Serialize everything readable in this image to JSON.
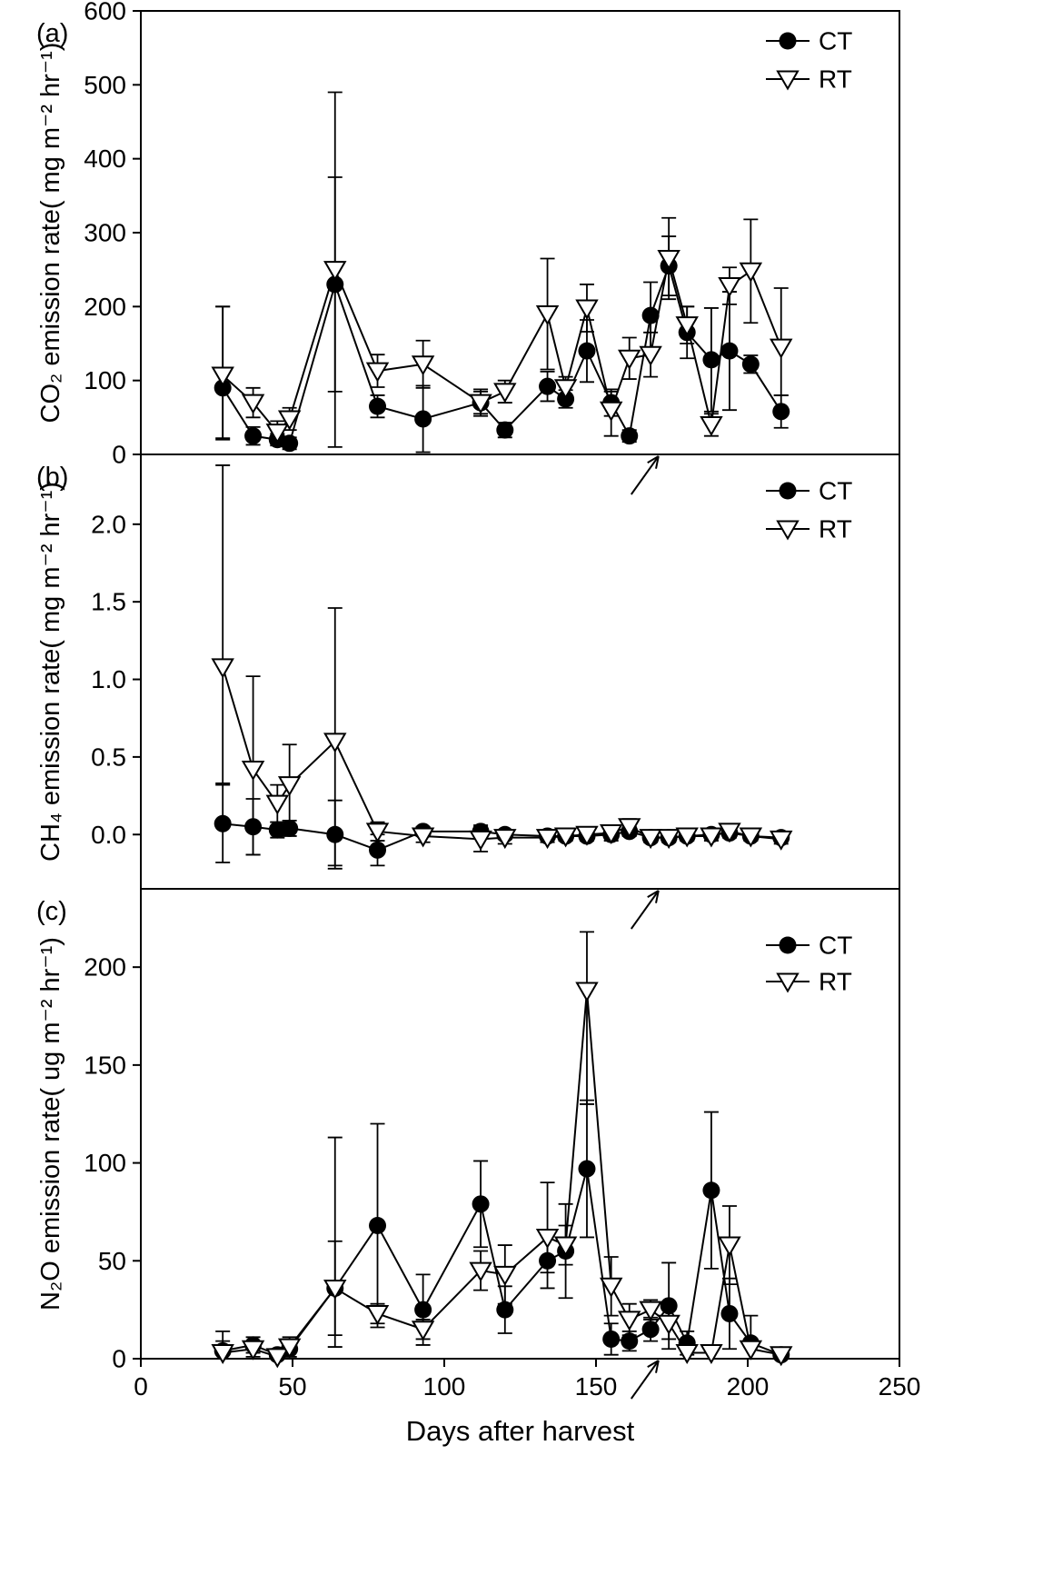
{
  "figure": {
    "xlabel": "Days after harvest",
    "xlim": [
      0,
      250
    ],
    "x_tick_values": [
      0,
      50,
      100,
      150,
      200,
      250
    ],
    "x_tick_labels": [
      "0",
      "50",
      "100",
      "150",
      "200",
      "250"
    ],
    "line_color": "#000000",
    "background": "#ffffff",
    "legend": [
      {
        "label": "CT",
        "marker": "filled-circle"
      },
      {
        "label": "RT",
        "marker": "open-triangle-down"
      }
    ]
  },
  "chart_data": [
    {
      "type": "line",
      "panel_label": "(a)",
      "ylabel": "CO₂ emission rate( mg m⁻² hr⁻¹)",
      "ylim": [
        0,
        600
      ],
      "y_tick_values": [
        0,
        100,
        200,
        300,
        400,
        500,
        600
      ],
      "y_tick_labels": [
        "0",
        "100",
        "200",
        "300",
        "400",
        "500",
        "600"
      ],
      "x": [
        27,
        37,
        45,
        49,
        64,
        78,
        93,
        112,
        120,
        134,
        140,
        147,
        155,
        161,
        168,
        174,
        180,
        188,
        194,
        201,
        211
      ],
      "series": [
        {
          "name": "CT",
          "marker": "filled-circle",
          "values": [
            90,
            25,
            20,
            15,
            230,
            65,
            48,
            70,
            33,
            92,
            75,
            140,
            70,
            25,
            188,
            255,
            165,
            128,
            140,
            122,
            58
          ],
          "err_up": [
            110,
            12,
            8,
            8,
            145,
            15,
            45,
            15,
            10,
            20,
            12,
            42,
            18,
            8,
            45,
            40,
            35,
            70,
            80,
            12,
            22
          ],
          "err_dn": [
            70,
            12,
            8,
            8,
            145,
            15,
            45,
            15,
            10,
            20,
            12,
            42,
            18,
            8,
            45,
            40,
            35,
            70,
            80,
            12,
            22
          ]
        },
        {
          "name": "RT",
          "marker": "open-triangle-down",
          "values": [
            107,
            70,
            30,
            48,
            250,
            113,
            122,
            70,
            85,
            190,
            90,
            198,
            60,
            130,
            135,
            265,
            175,
            40,
            228,
            248,
            145
          ],
          "err_up": [
            93,
            20,
            15,
            15,
            240,
            22,
            32,
            18,
            15,
            75,
            15,
            32,
            25,
            28,
            30,
            55,
            25,
            15,
            25,
            70,
            80
          ],
          "err_dn": [
            85,
            20,
            15,
            15,
            240,
            22,
            32,
            18,
            15,
            75,
            15,
            32,
            35,
            28,
            30,
            55,
            25,
            15,
            25,
            70,
            65
          ]
        }
      ],
      "annotations": [
        {
          "type": "arrow",
          "x": 170
        }
      ]
    },
    {
      "type": "line",
      "panel_label": "(b)",
      "ylabel": "CH₄ emission rate( mg m⁻² hr⁻¹)",
      "ylim": [
        -0.35,
        2.45
      ],
      "y_tick_values": [
        0.0,
        0.5,
        1.0,
        1.5,
        2.0
      ],
      "y_tick_labels": [
        "0.0",
        "0.5",
        "1.0",
        "1.5",
        "2.0"
      ],
      "x": [
        27,
        37,
        45,
        49,
        64,
        78,
        93,
        112,
        120,
        134,
        140,
        147,
        155,
        161,
        168,
        174,
        180,
        188,
        194,
        201,
        211
      ],
      "series": [
        {
          "name": "CT",
          "marker": "filled-circle",
          "values": [
            0.07,
            0.05,
            0.03,
            0.04,
            0.0,
            -0.1,
            0.02,
            0.02,
            0.0,
            -0.01,
            -0.01,
            -0.01,
            0.0,
            0.02,
            -0.02,
            -0.02,
            -0.01,
            0.0,
            0.01,
            -0.01,
            -0.02
          ],
          "err_up": [
            0.25,
            0.18,
            0.05,
            0.05,
            0.22,
            0.1,
            0.03,
            0.04,
            0.03,
            0.02,
            0.02,
            0.02,
            0.02,
            0.03,
            0.02,
            0.02,
            0.02,
            0.02,
            0.02,
            0.02,
            0.02
          ],
          "err_dn": [
            0.25,
            0.18,
            0.05,
            0.05,
            0.22,
            0.1,
            0.03,
            0.04,
            0.03,
            0.02,
            0.02,
            0.02,
            0.02,
            0.03,
            0.02,
            0.02,
            0.02,
            0.02,
            0.02,
            0.02,
            0.02
          ]
        },
        {
          "name": "RT",
          "marker": "open-triangle-down",
          "values": [
            1.08,
            0.42,
            0.2,
            0.32,
            0.6,
            0.02,
            -0.01,
            -0.03,
            -0.02,
            -0.02,
            -0.01,
            0.0,
            0.01,
            0.05,
            -0.02,
            -0.02,
            -0.01,
            -0.01,
            0.02,
            -0.01,
            -0.03
          ],
          "err_up": [
            1.3,
            0.6,
            0.12,
            0.26,
            0.86,
            0.06,
            0.04,
            0.08,
            0.04,
            0.03,
            0.03,
            0.04,
            0.05,
            0.05,
            0.03,
            0.03,
            0.03,
            0.03,
            0.04,
            0.03,
            0.03
          ],
          "err_dn": [
            0.75,
            0.55,
            0.12,
            0.26,
            0.8,
            0.06,
            0.04,
            0.08,
            0.04,
            0.03,
            0.03,
            0.04,
            0.05,
            0.05,
            0.03,
            0.03,
            0.03,
            0.03,
            0.04,
            0.03,
            0.03
          ]
        }
      ],
      "annotations": [
        {
          "type": "arrow",
          "x": 170
        }
      ]
    },
    {
      "type": "line",
      "panel_label": "(c)",
      "ylabel": "N₂O emission rate( ug m⁻² hr⁻¹)",
      "ylim": [
        0,
        240
      ],
      "y_tick_values": [
        0,
        50,
        100,
        150,
        200
      ],
      "y_tick_labels": [
        "0",
        "50",
        "100",
        "150",
        "200"
      ],
      "x": [
        27,
        37,
        45,
        49,
        64,
        78,
        93,
        112,
        120,
        134,
        140,
        147,
        155,
        161,
        168,
        174,
        180,
        188,
        194,
        201,
        211
      ],
      "series": [
        {
          "name": "CT",
          "marker": "filled-circle",
          "values": [
            4,
            7,
            2,
            5,
            36,
            68,
            25,
            79,
            25,
            50,
            55,
            97,
            10,
            9,
            15,
            27,
            8,
            86,
            23,
            8,
            2
          ],
          "err_up": [
            10,
            4,
            3,
            4,
            24,
            52,
            18,
            22,
            12,
            14,
            24,
            35,
            8,
            5,
            6,
            22,
            6,
            40,
            18,
            14,
            3
          ],
          "err_dn": [
            4,
            4,
            2,
            4,
            24,
            52,
            18,
            22,
            12,
            14,
            24,
            35,
            8,
            5,
            6,
            22,
            6,
            40,
            18,
            8,
            2
          ]
        },
        {
          "name": "RT",
          "marker": "open-triangle-down",
          "values": [
            3,
            5,
            1,
            6,
            36,
            23,
            15,
            45,
            43,
            62,
            58,
            188,
            37,
            20,
            25,
            18,
            3,
            3,
            58,
            5,
            2
          ],
          "err_up": [
            6,
            4,
            3,
            5,
            77,
            5,
            5,
            10,
            15,
            28,
            10,
            30,
            15,
            8,
            5,
            8,
            4,
            4,
            20,
            5,
            3
          ],
          "err_dn": [
            3,
            4,
            1,
            5,
            30,
            5,
            5,
            10,
            15,
            18,
            10,
            58,
            15,
            8,
            5,
            8,
            3,
            3,
            20,
            5,
            2
          ]
        }
      ],
      "annotations": [
        {
          "type": "arrow",
          "x": 170
        }
      ]
    }
  ]
}
